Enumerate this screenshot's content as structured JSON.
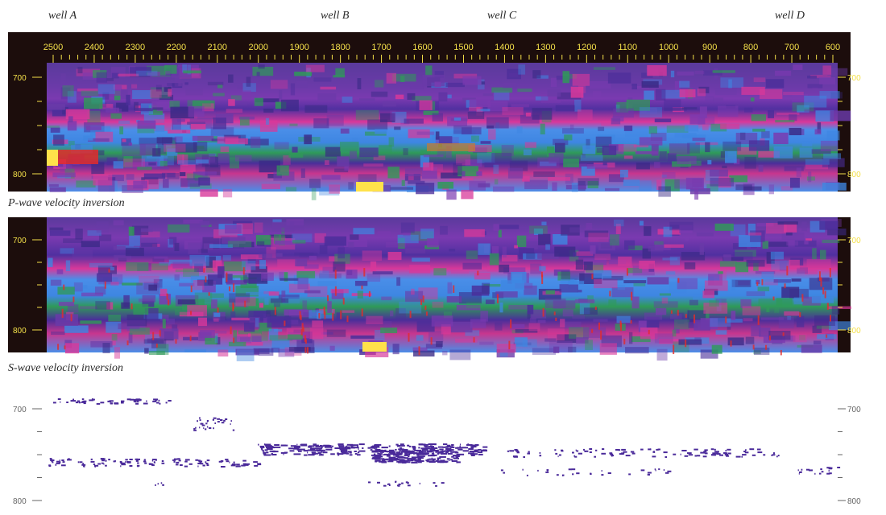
{
  "wells": [
    "well A",
    "well B",
    "well C",
    "well D"
  ],
  "trace_axis": {
    "labels": [
      "2500",
      "2400",
      "2300",
      "2200",
      "2100",
      "2000",
      "1900",
      "1800",
      "1700",
      "1600",
      "1500",
      "1400",
      "1300",
      "1200",
      "1100",
      "1000",
      "900",
      "800",
      "700",
      "600"
    ]
  },
  "panels": [
    {
      "id": "top",
      "caption": "",
      "left_labels": [
        "700",
        "800"
      ],
      "right_labels": [
        "700",
        "800"
      ]
    },
    {
      "id": "p-wave",
      "caption": "P-wave velocity inversion",
      "left_labels": [
        "700",
        "800"
      ],
      "right_labels": [
        "700",
        "800"
      ]
    },
    {
      "id": "s-wave",
      "caption": "S-wave velocity inversion",
      "left_labels": [
        "700",
        "800"
      ],
      "right_labels": [
        "700",
        "800"
      ]
    }
  ],
  "colors": {
    "frame": "#1c0d0c",
    "base_purple": "#5b3aa0",
    "blue": "#3f8ee8",
    "pink": "#e0389a",
    "green": "#3a9a4a",
    "yellow": "#ffe24a",
    "red": "#e22c2c",
    "scatter": "#4a2a9a"
  }
}
